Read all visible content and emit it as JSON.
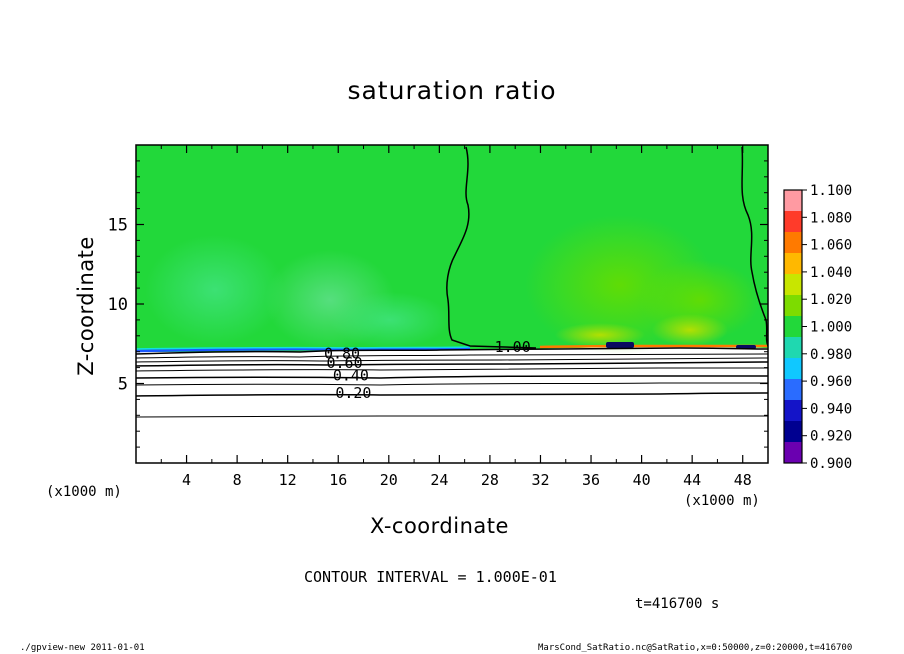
{
  "chart_data": {
    "type": "heatmap",
    "title": "saturation ratio",
    "xlabel": "X-coordinate",
    "ylabel": "Z-coordinate",
    "x_unit_label": "(x1000 m)",
    "y_unit_label": "(x1000 m)",
    "xlim": [
      0,
      50
    ],
    "ylim": [
      0,
      20
    ],
    "x_ticks": [
      4,
      8,
      12,
      16,
      20,
      24,
      28,
      32,
      36,
      40,
      44,
      48
    ],
    "y_ticks": [
      5,
      10,
      15
    ],
    "contour_labels": [
      {
        "text": "0.80",
        "x": 16.3,
        "z": 6.9
      },
      {
        "text": "0.60",
        "x": 16.5,
        "z": 6.3
      },
      {
        "text": "0.40",
        "x": 17.0,
        "z": 5.5
      },
      {
        "text": "0.20",
        "x": 17.2,
        "z": 4.4
      },
      {
        "text": "1.00",
        "x": 29.8,
        "z": 7.3
      }
    ],
    "colorbar": {
      "labels": [
        "1.100",
        "1.080",
        "1.060",
        "1.040",
        "1.020",
        "1.000",
        "0.980",
        "0.960",
        "0.940",
        "0.920",
        "0.900"
      ],
      "colors": [
        "#ff9aa2",
        "#ff3b2a",
        "#ff7a00",
        "#ffb800",
        "#c8e600",
        "#7ddc00",
        "#22d83a",
        "#1fd8b0",
        "#10c8ff",
        "#2a6cff",
        "#1414c8",
        "#000090",
        "#6a00b0"
      ]
    },
    "grid": false
  },
  "text": {
    "contour_interval": "CONTOUR INTERVAL = 1.000E-01",
    "time": "t=416700 s",
    "footer_left": "./gpview-new  2011-01-01",
    "footer_right": "MarsCond_SatRatio.nc@SatRatio,x=0:50000,z=0:20000,t=416700"
  }
}
